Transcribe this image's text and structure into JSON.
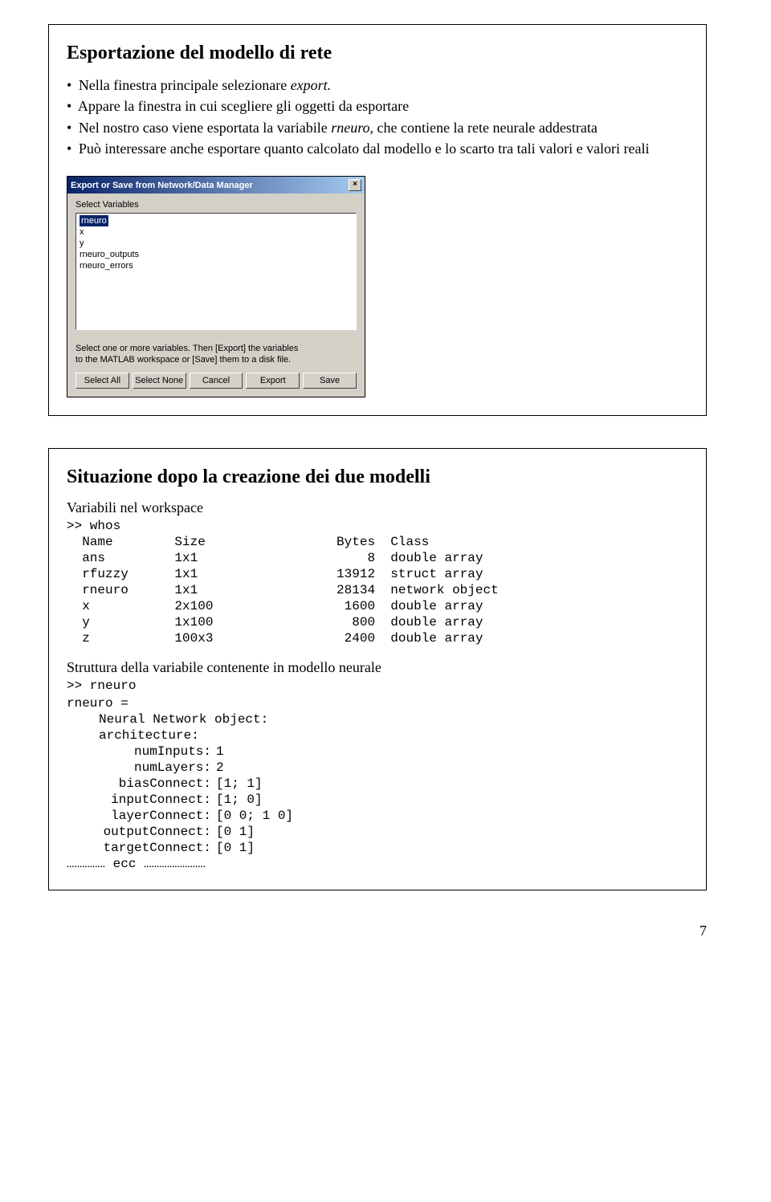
{
  "slide1": {
    "title": "Esportazione del modello di rete",
    "bullets": [
      {
        "pre": "Nella finestra principale selezionare ",
        "em": "export.",
        "post": ""
      },
      {
        "pre": "Appare la finestra in cui scegliere  gli oggetti da esportare",
        "em": "",
        "post": ""
      },
      {
        "pre": "Nel nostro caso viene esportata la variabile ",
        "em": "rneuro,",
        "post": " che contiene la rete neurale addestrata"
      },
      {
        "pre": "Può interessare anche esportare quanto calcolato dal modello e lo scarto tra tali valori e valori reali",
        "em": "",
        "post": ""
      }
    ],
    "dialog": {
      "title": "Export or Save from Network/Data Manager",
      "label": "Select Variables",
      "items": [
        "rneuro",
        "x",
        "y",
        "rneuro_outputs",
        "rneuro_errors"
      ],
      "instruction": "Select one or more variables. Then [Export] the variables\nto the MATLAB workspace or [Save] them to a disk file.",
      "buttons": [
        "Select All",
        "Select None",
        "Cancel",
        "Export",
        "Save"
      ]
    }
  },
  "slide2": {
    "title": "Situazione dopo la creazione dei due  modelli",
    "vars_heading": "Variabili nel workspace",
    "whos_cmd": ">> whos",
    "whos_header": {
      "c1": "Name",
      "c2": "Size",
      "c3": "Bytes",
      "c4": "Class"
    },
    "whos_rows": [
      {
        "c1": "ans",
        "c2": "1x1",
        "c3": "8",
        "c4": "double array"
      },
      {
        "c1": "rfuzzy",
        "c2": "1x1",
        "c3": "13912",
        "c4": "struct array"
      },
      {
        "c1": "rneuro",
        "c2": "1x1",
        "c3": "28134",
        "c4": "network object"
      },
      {
        "c1": "x",
        "c2": "2x100",
        "c3": "1600",
        "c4": "double array"
      },
      {
        "c1": "y",
        "c2": "1x100",
        "c3": "800",
        "c4": "double array"
      },
      {
        "c1": "z",
        "c2": "100x3",
        "c3": "2400",
        "c4": "double array"
      }
    ],
    "struct_heading": "Struttura della variabile contenente in modello neurale",
    "rneuro_cmd": ">> rneuro",
    "rneuro_eq": "rneuro =",
    "nn_label": "Neural Network object:",
    "arch_label": "architecture:",
    "arch_rows": [
      {
        "k": "numInputs:",
        "v": "1"
      },
      {
        "k": "numLayers:",
        "v": "2"
      },
      {
        "k": "biasConnect:",
        "v": "[1; 1]"
      },
      {
        "k": "inputConnect:",
        "v": "[1; 0]"
      },
      {
        "k": "layerConnect:",
        "v": "[0 0; 1 0]"
      },
      {
        "k": "outputConnect:",
        "v": "[0 1]"
      },
      {
        "k": "targetConnect:",
        "v": "[0 1]"
      }
    ],
    "ecc": "…………… ecc ……………………"
  },
  "page_number": "7"
}
